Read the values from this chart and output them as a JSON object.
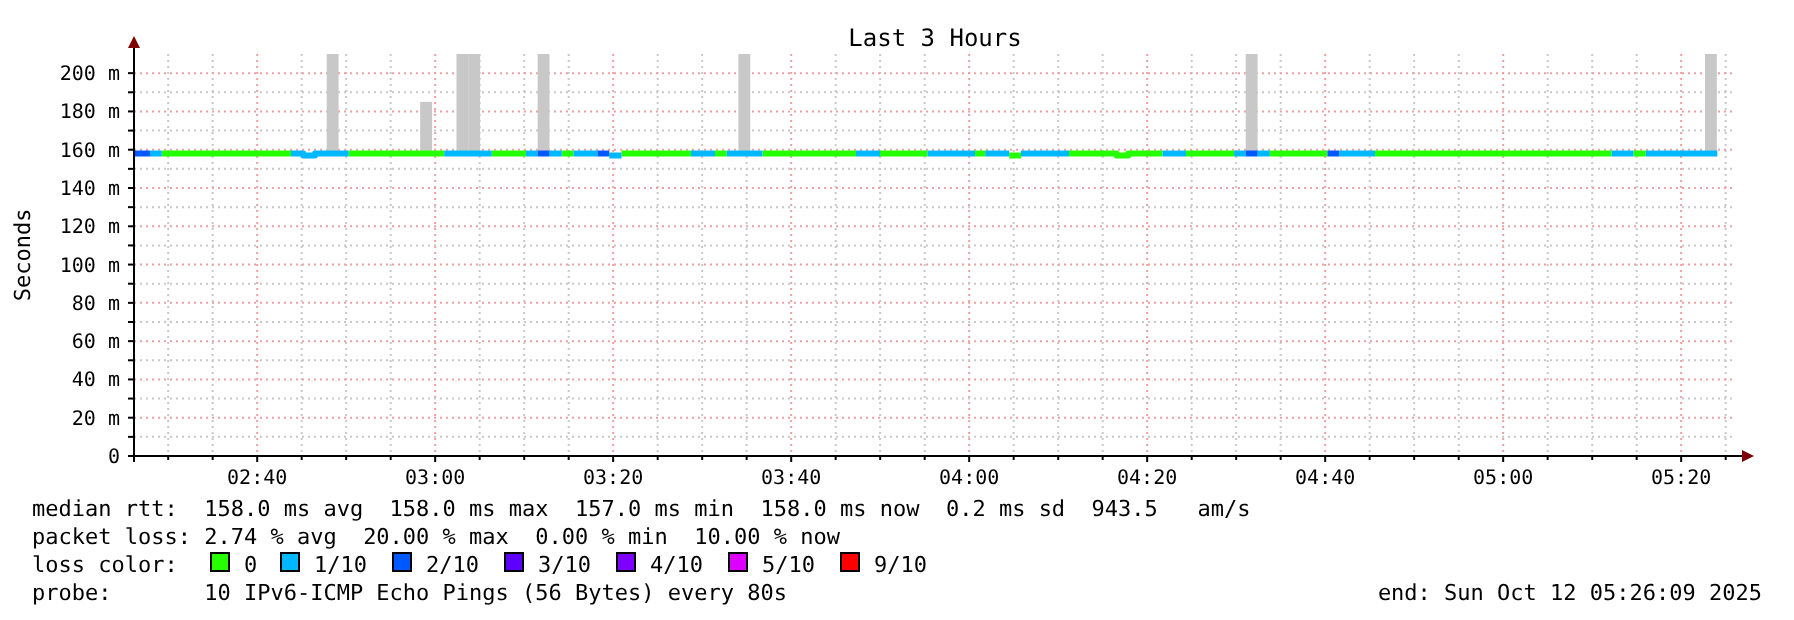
{
  "chart_data": {
    "type": "line",
    "title": "Last 3 Hours",
    "ylabel": "Seconds",
    "legend_title": "loss color:",
    "legend": "bottom",
    "grid": true,
    "line_style": "solid",
    "marker": "none",
    "xlim": [
      2.436,
      5.436
    ],
    "xticks": [
      {
        "value": 2.5,
        "label": null
      },
      {
        "value": 2.5833,
        "label": null
      },
      {
        "value": 2.6667,
        "label": "02:40"
      },
      {
        "value": 2.75,
        "label": null
      },
      {
        "value": 2.8333,
        "label": null
      },
      {
        "value": 2.9167,
        "label": null
      },
      {
        "value": 3,
        "label": "03:00"
      },
      {
        "value": 3.0833,
        "label": null
      },
      {
        "value": 3.1667,
        "label": null
      },
      {
        "value": 3.25,
        "label": null
      },
      {
        "value": 3.3333,
        "label": "03:20"
      },
      {
        "value": 3.4167,
        "label": null
      },
      {
        "value": 3.5,
        "label": null
      },
      {
        "value": 3.5833,
        "label": null
      },
      {
        "value": 3.6667,
        "label": "03:40"
      },
      {
        "value": 3.75,
        "label": null
      },
      {
        "value": 3.8333,
        "label": null
      },
      {
        "value": 3.9167,
        "label": null
      },
      {
        "value": 4,
        "label": "04:00"
      },
      {
        "value": 4.0833,
        "label": null
      },
      {
        "value": 4.1667,
        "label": null
      },
      {
        "value": 4.25,
        "label": null
      },
      {
        "value": 4.3333,
        "label": "04:20"
      },
      {
        "value": 4.4167,
        "label": null
      },
      {
        "value": 4.5,
        "label": null
      },
      {
        "value": 4.5833,
        "label": null
      },
      {
        "value": 4.6667,
        "label": "04:40"
      },
      {
        "value": 4.75,
        "label": null
      },
      {
        "value": 4.8333,
        "label": null
      },
      {
        "value": 4.9167,
        "label": null
      },
      {
        "value": 5,
        "label": "05:00"
      },
      {
        "value": 5.0833,
        "label": null
      },
      {
        "value": 5.1667,
        "label": null
      },
      {
        "value": 5.25,
        "label": null
      },
      {
        "value": 5.3333,
        "label": "05:20"
      },
      {
        "value": 5.4167,
        "label": null
      }
    ],
    "ylim": [
      0,
      210
    ],
    "yticks": [
      0,
      {
        "value": 10,
        "label": null
      },
      {
        "value": 20,
        "label": "20 m"
      },
      {
        "value": 30,
        "label": null
      },
      {
        "value": 40,
        "label": "40 m"
      },
      {
        "value": 50,
        "label": null
      },
      {
        "value": 60,
        "label": "60 m"
      },
      {
        "value": 70,
        "label": null
      },
      {
        "value": 80,
        "label": "80 m"
      },
      {
        "value": 90,
        "label": null
      },
      {
        "value": 100,
        "label": "100 m"
      },
      {
        "value": 110,
        "label": null
      },
      {
        "value": 120,
        "label": "120 m"
      },
      {
        "value": 130,
        "label": null
      },
      {
        "value": 140,
        "label": "140 m"
      },
      {
        "value": 150,
        "label": null
      },
      {
        "value": 160,
        "label": "160 m"
      },
      {
        "value": 170,
        "label": null
      },
      {
        "value": 180,
        "label": "180 m"
      },
      {
        "value": 190,
        "label": null
      },
      {
        "value": 200,
        "label": "200 m"
      }
    ],
    "series": [
      {
        "type": "bar",
        "color": "#c8c8c8",
        "x": [
          2.808,
          2.983,
          3.051,
          3.073,
          3.203,
          3.579,
          4.529,
          5.389
        ],
        "base": [
          157,
          157,
          157,
          157,
          157,
          157,
          157,
          157
        ],
        "values": [
          53,
          28,
          53,
          53,
          53,
          53,
          53,
          53
        ]
      },
      {
        "name": "0",
        "color": "#26ff00",
        "x": [
          2.488,
          2.73,
          2.78,
          2.838,
          3.017,
          3.05,
          3.106,
          3.17,
          3.2,
          3.237,
          3.259,
          3.3,
          3.349,
          3.479,
          3.5,
          3.524,
          3.546,
          3.58,
          3.613,
          3.788,
          3.8,
          3.833,
          3.922,
          3.95,
          4.011,
          4.03,
          4.05,
          4.075,
          4.097,
          4.15,
          4.187,
          4.276,
          4.276,
          4.298,
          4.298,
          4.362,
          4.38,
          4.406,
          4.496,
          4.52,
          4.563,
          4.671,
          4.7,
          4.76,
          5.203,
          5.22,
          5.244,
          5.267
        ],
        "values": [
          158,
          158,
          null,
          158,
          158,
          null,
          158,
          158,
          null,
          158,
          158,
          null,
          158,
          158,
          null,
          158,
          158,
          null,
          158,
          158,
          null,
          158,
          158,
          null,
          158,
          158,
          null,
          157,
          157,
          null,
          158,
          158,
          157,
          157,
          158,
          158,
          null,
          158,
          158,
          null,
          158,
          158,
          null,
          158,
          158,
          null,
          158,
          158
        ]
      },
      {
        "name": "1/10",
        "color": "#00b8ff",
        "x": [
          2.466,
          2.488,
          2.6,
          2.73,
          2.753,
          2.753,
          2.775,
          2.775,
          2.838,
          2.9,
          3.017,
          3.106,
          3.15,
          3.17,
          3.192,
          3.2,
          3.214,
          3.237,
          3.25,
          3.259,
          3.304,
          3.31,
          3.326,
          3.349,
          3.4,
          3.479,
          3.524,
          3.53,
          3.546,
          3.613,
          3.7,
          3.788,
          3.833,
          3.9,
          3.922,
          4.011,
          4.02,
          4.03,
          4.075,
          4.08,
          4.097,
          4.187,
          4.3,
          4.362,
          4.406,
          4.45,
          4.496,
          4.518,
          4.53,
          4.54,
          4.563,
          4.6,
          4.693,
          4.76,
          5.0,
          5.203,
          5.244,
          5.25,
          5.267,
          5.401
        ],
        "values": [
          158,
          158,
          null,
          158,
          158,
          157,
          157,
          158,
          158,
          null,
          158,
          158,
          null,
          158,
          158,
          null,
          158,
          158,
          null,
          158,
          158,
          null,
          157,
          157,
          null,
          158,
          158,
          null,
          158,
          158,
          null,
          158,
          158,
          null,
          158,
          158,
          null,
          158,
          158,
          null,
          158,
          158,
          null,
          158,
          158,
          null,
          158,
          158,
          null,
          158,
          158,
          null,
          158,
          158,
          null,
          158,
          158,
          null,
          158,
          158
        ]
      },
      {
        "name": "2/10",
        "color": "#0059ff",
        "x": [
          2.436,
          2.466,
          3.0,
          3.192,
          3.214,
          3.25,
          3.304,
          3.326,
          4.0,
          4.518,
          4.54,
          4.6,
          4.671,
          4.693
        ],
        "values": [
          158,
          158,
          null,
          158,
          158,
          null,
          158,
          158,
          null,
          158,
          158,
          null,
          158,
          158
        ]
      },
      {
        "name": "3/10",
        "color": "#5e00ff"
      },
      {
        "name": "4/10",
        "color": "#7e00ff"
      },
      {
        "name": "5/10",
        "color": "#dd00ff"
      },
      {
        "name": "9/10",
        "color": "#ff0000"
      }
    ],
    "annotations": [
      "median rtt:  158.0 ms avg  158.0 ms max  157.0 ms min  158.0 ms now  0.2 ms sd  943.5   am/s",
      "packet loss: 2.74 % avg  20.00 % max  0.00 % min  10.00 % now",
      "probe:       10 IPv6-ICMP Echo Pings (56 Bytes) every 80s",
      "end: Sun Oct 12 05:26:09 2025"
    ]
  }
}
